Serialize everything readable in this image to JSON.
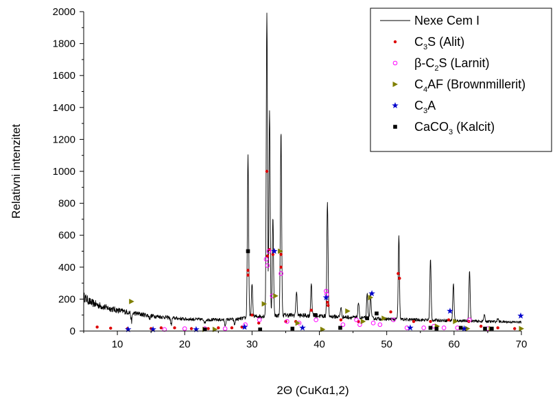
{
  "chart_data": {
    "type": "line",
    "xlabel": "2Θ (CuKα1,2)",
    "ylabel": "Relativni intenzitet",
    "xlim": [
      5,
      70
    ],
    "ylim": [
      0,
      2000
    ],
    "xticks": [
      10,
      20,
      30,
      40,
      50,
      60,
      70
    ],
    "yticks": [
      0,
      200,
      400,
      600,
      800,
      1000,
      1200,
      1400,
      1600,
      1800,
      2000
    ],
    "tick_labels_x": [
      "10",
      "20",
      "30",
      "40",
      "50",
      "60",
      "70"
    ],
    "tick_labels_y": [
      "0",
      "200",
      "400",
      "600",
      "800",
      "1000",
      "1200",
      "1400",
      "1600",
      "1800",
      "2000"
    ],
    "grid": false,
    "legend_position": "top-right",
    "legend": [
      {
        "main": "Nexe Cem I",
        "symbol": "line",
        "color": "#000000"
      },
      {
        "main": "C",
        "sub": "3",
        "rest": "S (Alit)",
        "symbol": "dot",
        "color": "#dd0000"
      },
      {
        "main": "β-C",
        "sub": "2",
        "rest": "S (Larnit)",
        "symbol": "open-circle",
        "color": "#ff00ff"
      },
      {
        "main": "C",
        "sub": "4",
        "rest": "AF (Brownmillerit)",
        "symbol": "triangle-right",
        "color": "#808000"
      },
      {
        "main": "C",
        "sub": "3",
        "rest": "A",
        "symbol": "star",
        "color": "#0000cc"
      },
      {
        "main": "CaCO",
        "sub": "3",
        "rest": " (Kalcit)",
        "symbol": "square",
        "color": "#000000"
      }
    ],
    "pattern": {
      "name": "Nexe Cem I",
      "color": "#000000",
      "background": {
        "x": [
          5,
          6,
          8,
          10,
          12,
          15,
          20,
          25,
          28,
          30,
          35,
          40,
          45,
          50,
          55,
          60,
          65,
          70
        ],
        "y": [
          215,
          180,
          150,
          130,
          115,
          95,
          75,
          70,
          75,
          90,
          100,
          95,
          85,
          75,
          70,
          65,
          60,
          55
        ]
      },
      "peaks": [
        {
          "x": 12.1,
          "y": 60
        },
        {
          "x": 14.8,
          "y": 80
        },
        {
          "x": 18.0,
          "y": 40
        },
        {
          "x": 23.0,
          "y": 50
        },
        {
          "x": 26.0,
          "y": 35
        },
        {
          "x": 27.4,
          "y": 40
        },
        {
          "x": 29.4,
          "y": 1100
        },
        {
          "x": 30.0,
          "y": 290
        },
        {
          "x": 32.2,
          "y": 2000
        },
        {
          "x": 32.6,
          "y": 1390
        },
        {
          "x": 33.1,
          "y": 720
        },
        {
          "x": 34.3,
          "y": 1250
        },
        {
          "x": 36.6,
          "y": 250
        },
        {
          "x": 38.8,
          "y": 300
        },
        {
          "x": 41.2,
          "y": 810
        },
        {
          "x": 43.2,
          "y": 150
        },
        {
          "x": 45.8,
          "y": 180
        },
        {
          "x": 47.1,
          "y": 230
        },
        {
          "x": 47.6,
          "y": 230
        },
        {
          "x": 51.8,
          "y": 590
        },
        {
          "x": 56.5,
          "y": 450
        },
        {
          "x": 59.9,
          "y": 300
        },
        {
          "x": 62.3,
          "y": 380
        },
        {
          "x": 64.5,
          "y": 100
        },
        {
          "x": 66.5,
          "y": 80
        }
      ]
    },
    "series": [
      {
        "name": "C3S (Alit)",
        "marker": "dot",
        "color": "#dd0000",
        "points": [
          [
            7,
            25
          ],
          [
            9,
            18
          ],
          [
            11.5,
            15
          ],
          [
            15,
            15
          ],
          [
            16.5,
            20
          ],
          [
            18.5,
            20
          ],
          [
            21,
            15
          ],
          [
            23.5,
            15
          ],
          [
            25,
            20
          ],
          [
            27,
            20
          ],
          [
            28.5,
            25
          ],
          [
            29.4,
            350
          ],
          [
            29.4,
            380
          ],
          [
            30,
            100
          ],
          [
            31,
            50
          ],
          [
            32.2,
            1000
          ],
          [
            32.3,
            470
          ],
          [
            32.6,
            510
          ],
          [
            33.1,
            480
          ],
          [
            34.3,
            480
          ],
          [
            34.3,
            400
          ],
          [
            35,
            60
          ],
          [
            36.5,
            60
          ],
          [
            38.8,
            130
          ],
          [
            41.2,
            180
          ],
          [
            41.3,
            160
          ],
          [
            43.2,
            70
          ],
          [
            45.8,
            60
          ],
          [
            47.1,
            80
          ],
          [
            50.6,
            120
          ],
          [
            51.7,
            360
          ],
          [
            51.9,
            330
          ],
          [
            54,
            60
          ],
          [
            56.5,
            60
          ],
          [
            59.2,
            70
          ],
          [
            62.2,
            60
          ],
          [
            64,
            30
          ],
          [
            66.5,
            20
          ],
          [
            69,
            15
          ]
        ]
      },
      {
        "name": "β-C2S (Larnit)",
        "marker": "open-circle",
        "color": "#ff00ff",
        "points": [
          [
            17,
            10
          ],
          [
            20,
            15
          ],
          [
            23,
            15
          ],
          [
            26,
            15
          ],
          [
            29,
            40
          ],
          [
            31.1,
            70
          ],
          [
            32.1,
            450
          ],
          [
            32.3,
            410
          ],
          [
            32.5,
            500
          ],
          [
            33,
            220
          ],
          [
            34.3,
            360
          ],
          [
            35.2,
            60
          ],
          [
            37,
            50
          ],
          [
            39.5,
            70
          ],
          [
            41,
            250
          ],
          [
            41.1,
            230
          ],
          [
            43.5,
            40
          ],
          [
            45.5,
            70
          ],
          [
            46,
            40
          ],
          [
            48,
            50
          ],
          [
            49,
            40
          ],
          [
            51,
            70
          ],
          [
            53,
            20
          ],
          [
            55.5,
            20
          ],
          [
            57,
            30
          ],
          [
            58.5,
            20
          ],
          [
            60.5,
            20
          ],
          [
            62.3,
            70
          ],
          [
            65,
            15
          ]
        ]
      },
      {
        "name": "C4AF (Brownmillerit)",
        "marker": "triangle-right",
        "color": "#808000",
        "points": [
          [
            12.1,
            185
          ],
          [
            23,
            10
          ],
          [
            24.5,
            10
          ],
          [
            31.8,
            170
          ],
          [
            33.5,
            220
          ],
          [
            34.2,
            500
          ],
          [
            36.8,
            50
          ],
          [
            40.5,
            10
          ],
          [
            44.2,
            125
          ],
          [
            46.5,
            60
          ],
          [
            47.6,
            210
          ],
          [
            49.6,
            80
          ],
          [
            57.5,
            30
          ],
          [
            60.2,
            60
          ],
          [
            62,
            15
          ],
          [
            65.5,
            15
          ],
          [
            70,
            15
          ]
        ]
      },
      {
        "name": "C3A",
        "marker": "star",
        "color": "#0000cc",
        "points": [
          [
            11.6,
            10
          ],
          [
            15.3,
            10
          ],
          [
            21.7,
            10
          ],
          [
            28.9,
            25
          ],
          [
            33.3,
            500
          ],
          [
            37.5,
            20
          ],
          [
            41,
            210
          ],
          [
            47.8,
            235
          ],
          [
            53.5,
            20
          ],
          [
            59.4,
            125
          ],
          [
            61.5,
            15
          ],
          [
            69.9,
            95
          ]
        ]
      },
      {
        "name": "CaCO3 (Kalcit)",
        "marker": "square",
        "color": "#000000",
        "points": [
          [
            23,
            10
          ],
          [
            29.4,
            500
          ],
          [
            31.2,
            10
          ],
          [
            36,
            15
          ],
          [
            39.4,
            100
          ],
          [
            43.1,
            20
          ],
          [
            47.1,
            80
          ],
          [
            48.5,
            110
          ],
          [
            56.5,
            20
          ],
          [
            57.4,
            15
          ],
          [
            61,
            20
          ],
          [
            64.6,
            15
          ],
          [
            65.6,
            15
          ]
        ]
      }
    ]
  }
}
